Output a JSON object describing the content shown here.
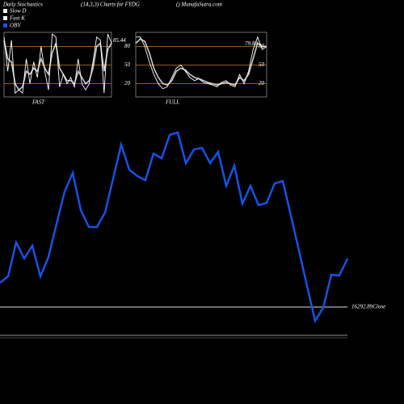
{
  "header": {
    "left": "Daily Stochastics",
    "center": "(14,3,3) Charts for FYDG",
    "right": "() MunafaSutra.com"
  },
  "chart_data": [
    {
      "type": "line",
      "title": "FAST",
      "ylim": [
        0,
        100
      ],
      "yticks": [
        20,
        50,
        80
      ],
      "grid_color": "#c8781e",
      "series": [
        {
          "name": "Slow D",
          "color": "#ffffff",
          "values": [
            90,
            60,
            55,
            20,
            10,
            15,
            40,
            35,
            45,
            40,
            60,
            45,
            35,
            70,
            85,
            45,
            35,
            25,
            25,
            20,
            40,
            30,
            20,
            25,
            45,
            80,
            85,
            40,
            75,
            85.44
          ]
        },
        {
          "name": "Fast K",
          "color": "#ffffff",
          "values": [
            95,
            40,
            90,
            5,
            10,
            5,
            60,
            20,
            55,
            30,
            80,
            40,
            10,
            100,
            95,
            15,
            35,
            20,
            30,
            15,
            60,
            20,
            10,
            20,
            55,
            95,
            90,
            5,
            100,
            85.44
          ]
        }
      ]
    },
    {
      "type": "line",
      "title": "FULL",
      "ylim": [
        0,
        100
      ],
      "yticks": [
        20,
        50,
        80
      ],
      "grid_color": "#c8781e",
      "series": [
        {
          "name": "Slow D",
          "color": "#ffffff",
          "values": [
            85,
            92,
            88,
            70,
            45,
            30,
            20,
            18,
            25,
            40,
            45,
            42,
            35,
            30,
            28,
            25,
            22,
            20,
            18,
            20,
            22,
            20,
            18,
            30,
            25,
            35,
            60,
            85,
            80,
            79.88
          ]
        },
        {
          "name": "Fast K",
          "color": "#ffffff",
          "values": [
            95,
            95,
            80,
            55,
            35,
            20,
            12,
            15,
            30,
            45,
            50,
            40,
            30,
            25,
            28,
            22,
            20,
            18,
            15,
            22,
            25,
            18,
            15,
            35,
            20,
            40,
            75,
            95,
            75,
            79.88
          ]
        }
      ]
    },
    {
      "type": "line",
      "annotations": [
        "16292.89Close"
      ],
      "ylim": [
        0,
        500
      ],
      "series": [
        {
          "name": "OBV",
          "color": "#1553e6",
          "values": [
            150,
            158,
            200,
            180,
            196,
            158,
            182,
            223,
            263,
            286,
            240,
            219,
            219,
            237,
            279,
            321,
            290,
            282,
            277,
            310,
            304,
            333,
            336,
            298,
            315,
            317,
            298,
            312,
            270,
            295,
            248,
            270,
            246,
            249,
            273,
            276,
            233,
            190,
            146,
            103,
            119,
            160,
            159,
            180
          ]
        }
      ]
    }
  ]
}
